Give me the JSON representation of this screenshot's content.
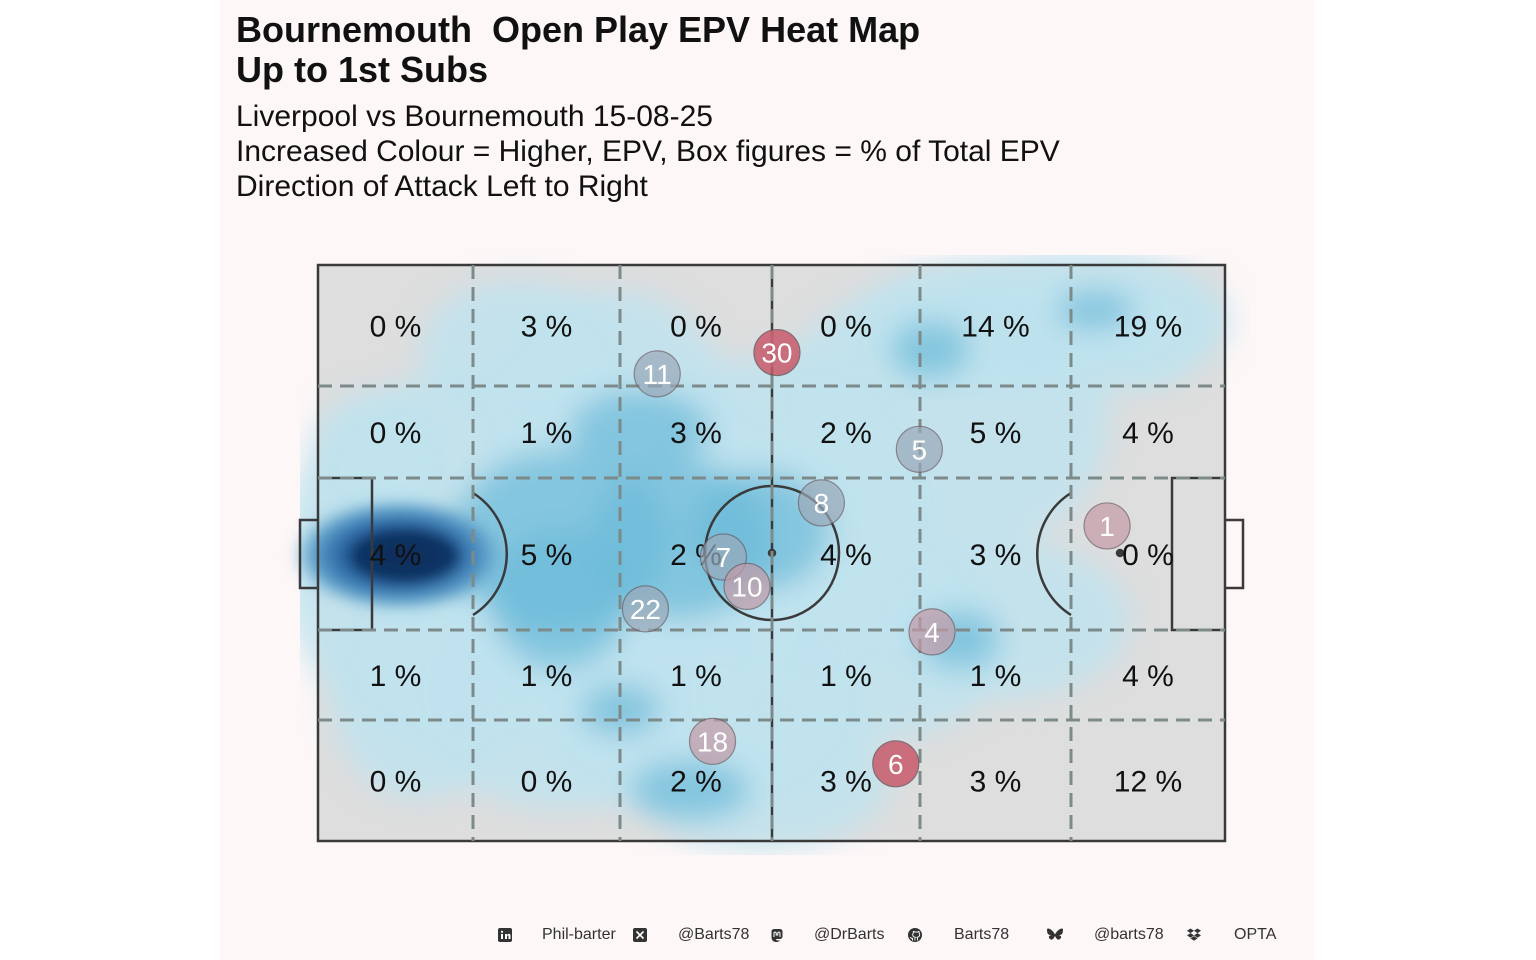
{
  "header": {
    "title_line1": "Bournemouth  Open Play EPV Heat Map",
    "title_line2": "Up to 1st Subs",
    "subtitle_line1": "Liverpool vs Bournemouth 15-08-25",
    "subtitle_line2": "Increased Colour = Higher, EPV, Box figures = % of Total EPV",
    "subtitle_line3": "Direction of Attack Left to Right"
  },
  "chart_data": {
    "type": "heatmap",
    "direction": "left-to-right",
    "grid": {
      "columns": 6,
      "rows": 5,
      "cells_pct": [
        [
          "0 %",
          "3 %",
          "0 %",
          "0 %",
          "14 %",
          "19 %"
        ],
        [
          "0 %",
          "1 %",
          "3 %",
          "2 %",
          "5 %",
          "4 %"
        ],
        [
          "4 %",
          "5 %",
          "2 %",
          "4 %",
          "3 %",
          "0 %"
        ],
        [
          "1 %",
          "1 %",
          "1 %",
          "1 %",
          "1 %",
          "4 %"
        ],
        [
          "0 %",
          "0 %",
          "2 %",
          "3 %",
          "3 %",
          "12 %"
        ]
      ]
    },
    "players": [
      {
        "number": "30",
        "x": 50.6,
        "y": 84.8,
        "status": "red"
      },
      {
        "number": "11",
        "x": 37.4,
        "y": 81.1,
        "status": "grey"
      },
      {
        "number": "5",
        "x": 66.3,
        "y": 68.0,
        "status": "grey"
      },
      {
        "number": "8",
        "x": 55.5,
        "y": 58.7,
        "status": "grey"
      },
      {
        "number": "1",
        "x": 87.0,
        "y": 54.7,
        "status": "pink"
      },
      {
        "number": "7",
        "x": 44.7,
        "y": 49.3,
        "status": "grey"
      },
      {
        "number": "10",
        "x": 47.3,
        "y": 44.2,
        "status": "pink"
      },
      {
        "number": "22",
        "x": 36.1,
        "y": 40.3,
        "status": "grey"
      },
      {
        "number": "4",
        "x": 67.7,
        "y": 36.3,
        "status": "pink"
      },
      {
        "number": "18",
        "x": 43.5,
        "y": 17.3,
        "status": "pink"
      },
      {
        "number": "6",
        "x": 63.7,
        "y": 13.4,
        "status": "red"
      }
    ],
    "colors": {
      "pitch_fill": "#dedede",
      "pitch_lines": "#3a3a3a",
      "grid_lines": "#7d8a8a",
      "density_light": "#bfe3ef",
      "density_mid": "#6bbad8",
      "density_dark": "#0b2f5e",
      "marker_red": "#c85a6a",
      "marker_grey": "#9aa9b8",
      "marker_pink": "#c49aa6"
    }
  },
  "footer": {
    "items": [
      {
        "icon": "linkedin-icon",
        "text": "Phil-barter"
      },
      {
        "icon": "x-icon",
        "text": "@Barts78"
      },
      {
        "icon": "mastodon-icon",
        "text": "@DrBarts"
      },
      {
        "icon": "github-icon",
        "text": "Barts78"
      },
      {
        "icon": "bluesky-icon",
        "text": "@barts78"
      },
      {
        "icon": "dropbox-icon",
        "text": "OPTA"
      }
    ]
  }
}
